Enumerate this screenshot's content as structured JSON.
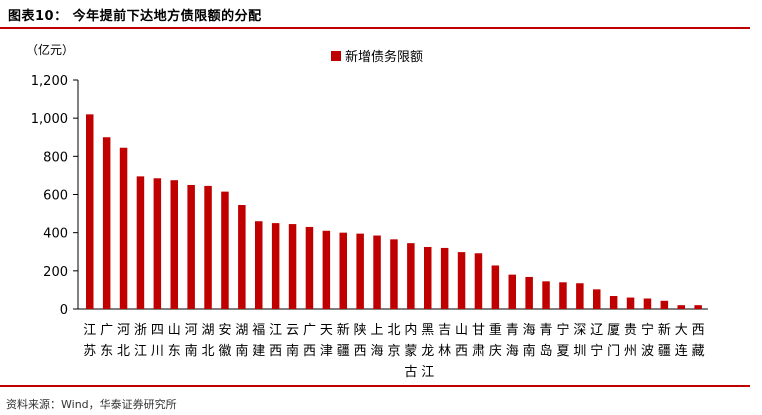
{
  "header": {
    "title": "图表10： 今年提前下达地方债限额的分配"
  },
  "source": "资料来源：Wind，华泰证券研究所",
  "colors": {
    "accent": "#c00000",
    "bar": "#c00000"
  },
  "chart_data": {
    "type": "bar",
    "unit_label": "（亿元）",
    "ylim": [
      0,
      1200
    ],
    "yticks": [
      "0",
      "200",
      "400",
      "600",
      "800",
      "1,000",
      "1,200"
    ],
    "ytick_values": [
      0,
      200,
      400,
      600,
      800,
      1000,
      1200
    ],
    "grid": false,
    "legend_position": "top-right",
    "categories": [
      "江苏",
      "广东",
      "河北",
      "浙江",
      "四川",
      "山东",
      "河南",
      "湖北",
      "安徽",
      "湖南",
      "福建",
      "江西",
      "云南",
      "广西",
      "天津",
      "新疆",
      "陕西",
      "上海",
      "北京",
      "内蒙古",
      "黑龙江",
      "吉林",
      "山西",
      "甘肃",
      "重庆",
      "青海",
      "海南",
      "青岛",
      "宁夏",
      "深圳",
      "辽宁",
      "厦门",
      "贵州",
      "宁波",
      "新疆",
      "大连",
      "西藏"
    ],
    "series": [
      {
        "name": "新增债务限额",
        "values": [
          1020,
          900,
          845,
          695,
          685,
          675,
          650,
          645,
          615,
          545,
          460,
          450,
          445,
          430,
          410,
          400,
          395,
          385,
          365,
          345,
          325,
          320,
          298,
          292,
          228,
          180,
          168,
          145,
          140,
          135,
          103,
          68,
          60,
          55,
          43,
          20,
          20
        ]
      }
    ]
  }
}
